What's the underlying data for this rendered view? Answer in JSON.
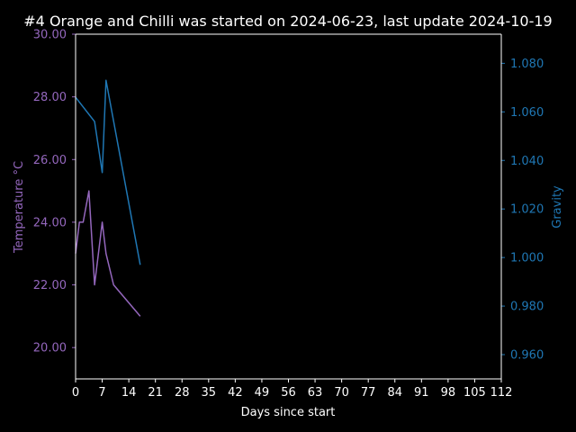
{
  "chart_data": {
    "type": "line",
    "title": "#4 Orange and Chilli was started on 2024-06-23, last update 2024-10-19",
    "xlabel": "Days since start",
    "xlim": [
      0,
      112
    ],
    "xticks": [
      "0",
      "7",
      "14",
      "21",
      "28",
      "35",
      "42",
      "49",
      "56",
      "63",
      "70",
      "77",
      "84",
      "91",
      "98",
      "105",
      "112"
    ],
    "background": "#000000",
    "grid": false,
    "y_left": {
      "label": "Temperature °C",
      "color": "#9467bd",
      "ylim": [
        19.0,
        30.0
      ],
      "ticks": [
        "20.00",
        "22.00",
        "24.00",
        "26.00",
        "28.00",
        "30.00"
      ]
    },
    "y_right": {
      "label": "Gravity",
      "color": "#1f77b4",
      "ylim": [
        0.95,
        1.092
      ],
      "ticks": [
        "0.960",
        "0.980",
        "1.000",
        "1.020",
        "1.040",
        "1.060",
        "1.080"
      ]
    },
    "series": [
      {
        "axis": "left",
        "color": "#9467bd",
        "x": [
          0,
          1,
          2,
          3.5,
          5,
          7,
          8,
          10,
          17
        ],
        "values": [
          23.0,
          24.0,
          24.0,
          25.0,
          22.0,
          24.0,
          23.0,
          22.0,
          21.0
        ]
      },
      {
        "axis": "right",
        "color": "#1f77b4",
        "x": [
          0,
          5,
          7,
          8,
          17
        ],
        "values": [
          1.066,
          1.056,
          1.035,
          1.073,
          0.997
        ]
      }
    ]
  }
}
